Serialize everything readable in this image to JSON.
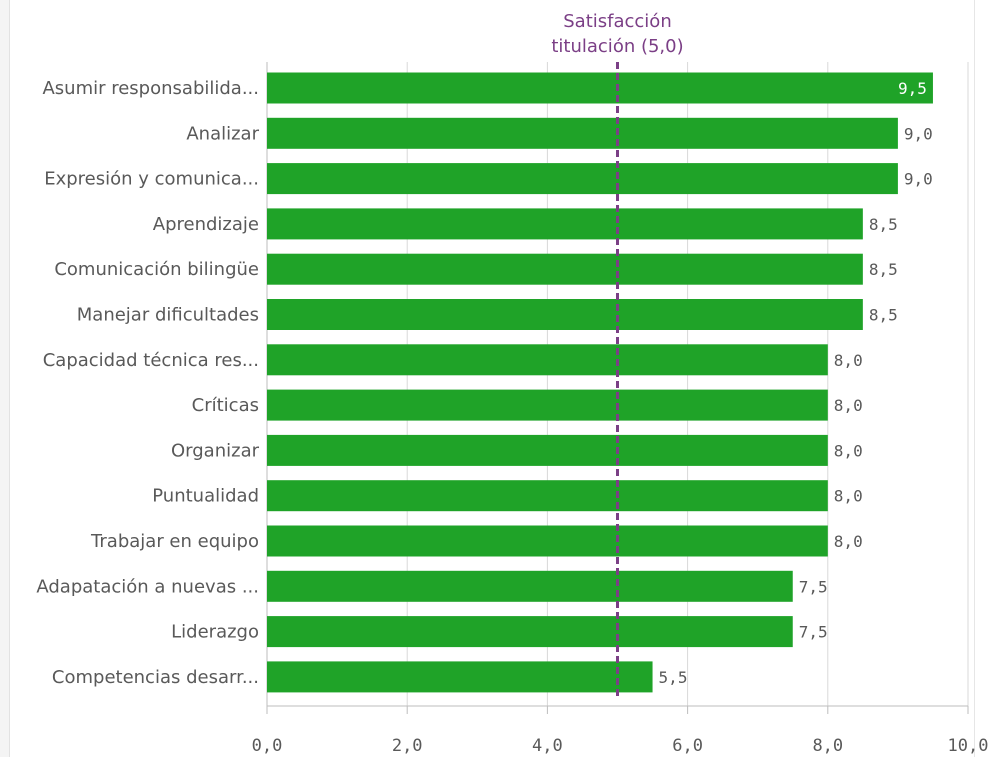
{
  "chart_data": {
    "type": "bar",
    "orientation": "horizontal",
    "categories": [
      "Asumir responsabilida...",
      "Analizar",
      "Expresión y comunica...",
      "Aprendizaje",
      "Comunicación bilingüe",
      "Manejar dificultades",
      "Capacidad técnica res...",
      "Críticas",
      "Organizar",
      "Puntualidad",
      "Trabajar en equipo",
      "Adapatación a nuevas ...",
      "Liderazgo",
      "Competencias desarr..."
    ],
    "values": [
      9.5,
      9.0,
      9.0,
      8.5,
      8.5,
      8.5,
      8.0,
      8.0,
      8.0,
      8.0,
      8.0,
      7.5,
      7.5,
      5.5
    ],
    "value_labels": [
      "9,5",
      "9,0",
      "9,0",
      "8,5",
      "8,5",
      "8,5",
      "8,0",
      "8,0",
      "8,0",
      "8,0",
      "8,0",
      "7,5",
      "7,5",
      "5,5"
    ],
    "xlim": [
      0,
      10
    ],
    "x_ticks": [
      0,
      2,
      4,
      6,
      8,
      10
    ],
    "x_tick_labels": [
      "0,0",
      "2,0",
      "4,0",
      "6,0",
      "8,0",
      "10,0"
    ],
    "grid": true,
    "bar_color": "#1fa328",
    "reference_line": {
      "value": 5.0,
      "label_lines": [
        "Satisfacción",
        "titulación (5,0)"
      ],
      "color": "#7b3f86",
      "style": "dashed"
    }
  }
}
